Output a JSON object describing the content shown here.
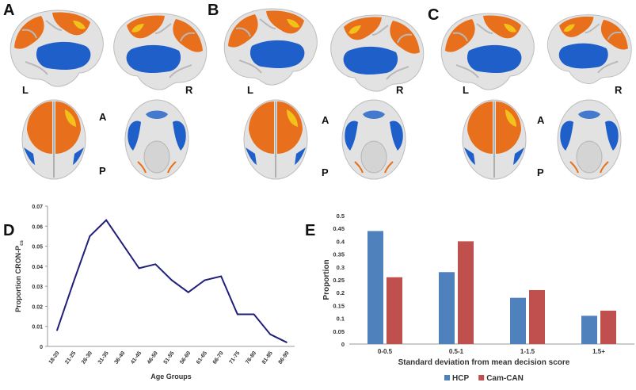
{
  "panels": {
    "a": "A",
    "b": "B",
    "c": "C",
    "d": "D",
    "e": "E"
  },
  "brain_labels": {
    "left": "L",
    "right": "R",
    "anterior": "A",
    "posterior": "P"
  },
  "colors": {
    "positive": "#e8701c",
    "positive_hot": "#f3c21a",
    "negative": "#1e5fc9",
    "cortex": "#e2e2e2",
    "line": "#1f1f7a",
    "hcp": "#4f81bd",
    "camcan": "#c0504d"
  },
  "chart_data": [
    {
      "type": "line",
      "xlabel": "Age Groups",
      "ylabel": "Proportion CRON-P",
      "ylabel_sub": "cs",
      "categories": [
        "18-20",
        "21-25",
        "26-30",
        "31-35",
        "36-40",
        "41-45",
        "46-50",
        "51-55",
        "56-60",
        "61-65",
        "66-70",
        "71-75",
        "76-80",
        "81-85",
        "86-90"
      ],
      "series": [
        {
          "values": [
            0.008,
            0.032,
            0.055,
            0.063,
            0.051,
            0.039,
            0.041,
            0.033,
            0.027,
            0.033,
            0.035,
            0.016,
            0.016,
            0.006,
            0.002
          ]
        }
      ],
      "ylim": [
        0,
        0.07
      ],
      "yticks": [
        "0",
        "0.01",
        "0.02",
        "0.03",
        "0.04",
        "0.05",
        "0.06",
        "0.07"
      ],
      "grid": false
    },
    {
      "type": "bar",
      "xlabel": "Standard deviation from mean decision score",
      "ylabel": "Proportion",
      "categories": [
        "0-0.5",
        "0.5-1",
        "1-1.5",
        "1.5+"
      ],
      "series": [
        {
          "name": "HCP",
          "values": [
            0.44,
            0.28,
            0.18,
            0.11
          ]
        },
        {
          "name": "Cam-CAN",
          "values": [
            0.26,
            0.4,
            0.21,
            0.13
          ]
        }
      ],
      "ylim": [
        0,
        0.5
      ],
      "yticks": [
        "0",
        "0.05",
        "0.1",
        "0.15",
        "0.2",
        "0.25",
        "0.3",
        "0.35",
        "0.4",
        "0.45",
        "0.5"
      ],
      "legend_position": "bottom",
      "grid": false
    }
  ]
}
